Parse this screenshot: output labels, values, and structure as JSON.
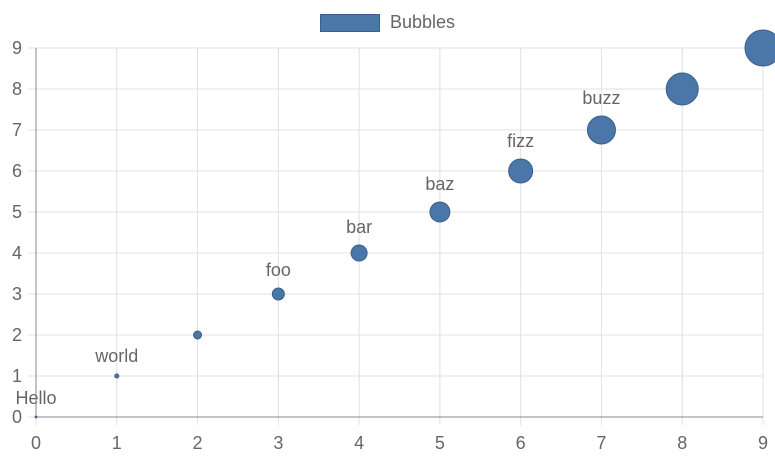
{
  "chart_data": {
    "type": "scatter",
    "subtype": "bubble",
    "title": "",
    "xlabel": "",
    "ylabel": "",
    "xlim": [
      0,
      9
    ],
    "ylim": [
      0,
      9
    ],
    "x_ticks": [
      0,
      1,
      2,
      3,
      4,
      5,
      6,
      7,
      8,
      9
    ],
    "y_ticks": [
      0,
      1,
      2,
      3,
      4,
      5,
      6,
      7,
      8,
      9
    ],
    "grid": true,
    "legend_position": "top-center",
    "series": [
      {
        "name": "Bubbles",
        "color": "#4a76a8",
        "points": [
          {
            "x": 0,
            "y": 0,
            "r": 0,
            "label": "Hello"
          },
          {
            "x": 1,
            "y": 1,
            "r": 1,
            "label": "world"
          },
          {
            "x": 2,
            "y": 2,
            "r": 2,
            "label": ""
          },
          {
            "x": 3,
            "y": 3,
            "r": 3,
            "label": "foo"
          },
          {
            "x": 4,
            "y": 4,
            "r": 4,
            "label": "bar"
          },
          {
            "x": 5,
            "y": 5,
            "r": 5,
            "label": "baz"
          },
          {
            "x": 6,
            "y": 6,
            "r": 6,
            "label": "fizz"
          },
          {
            "x": 7,
            "y": 7,
            "r": 7,
            "label": "buzz"
          },
          {
            "x": 8,
            "y": 8,
            "r": 8,
            "label": ""
          },
          {
            "x": 9,
            "y": 9,
            "r": 9,
            "label": ""
          }
        ]
      }
    ]
  },
  "colors": {
    "bubble_fill": "#4a76a8",
    "bubble_stroke": "#3a5f8f",
    "grid": "#e0e0e0",
    "axis": "#888888",
    "text": "#666666"
  }
}
